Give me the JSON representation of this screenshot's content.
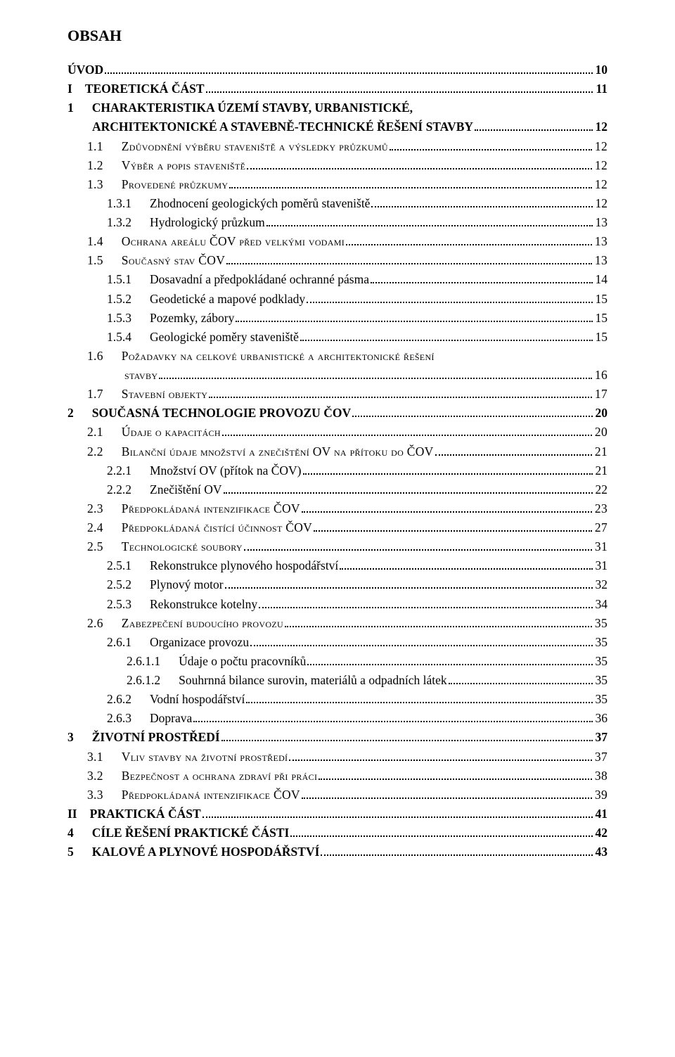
{
  "title": "OBSAH",
  "entries": [
    {
      "num": "",
      "text": "ÚVOD",
      "page": "10",
      "bold": true,
      "smallcaps": false,
      "indent": 0,
      "numGap": ""
    },
    {
      "num": "I",
      "text": "TEORETICKÁ ČÁST",
      "page": "11",
      "bold": true,
      "smallcaps": false,
      "indent": 0,
      "numGap": "narrow"
    },
    {
      "num": "1",
      "text": "CHARAKTERISTIKA ÚZEMÍ STAVBY, URBANISTICKÉ, ARCHITEKTONICKÉ A STAVEBNĚ-TECHNICKÉ ŘEŠENÍ STAVBY",
      "page": "12",
      "bold": true,
      "smallcaps": false,
      "indent": 0,
      "wrap": true,
      "numGap": "normal"
    },
    {
      "num": "1.1",
      "text": "Zdůvodnění výběru staveniště a výsledky průzkumů",
      "page": "12",
      "bold": false,
      "smallcaps": true,
      "indent": 1,
      "numGap": "normal"
    },
    {
      "num": "1.2",
      "text": "Výběr a popis staveniště",
      "page": "12",
      "bold": false,
      "smallcaps": true,
      "indent": 1,
      "numGap": "normal"
    },
    {
      "num": "1.3",
      "text": "Provedené průzkumy",
      "page": "12",
      "bold": false,
      "smallcaps": true,
      "indent": 1,
      "numGap": "normal"
    },
    {
      "num": "1.3.1",
      "text": "Zhodnocení geologických poměrů staveniště",
      "page": "12",
      "bold": false,
      "smallcaps": false,
      "indent": 2,
      "numGap": "normal"
    },
    {
      "num": "1.3.2",
      "text": "Hydrologický průzkum",
      "page": "13",
      "bold": false,
      "smallcaps": false,
      "indent": 2,
      "numGap": "normal"
    },
    {
      "num": "1.4",
      "text": "Ochrana areálu ČOV před velkými vodami",
      "page": "13",
      "bold": false,
      "smallcaps": true,
      "indent": 1,
      "numGap": "normal"
    },
    {
      "num": "1.5",
      "text": "Současný stav ČOV",
      "page": "13",
      "bold": false,
      "smallcaps": true,
      "indent": 1,
      "numGap": "normal"
    },
    {
      "num": "1.5.1",
      "text": "Dosavadní a předpokládané ochranné pásma",
      "page": "14",
      "bold": false,
      "smallcaps": false,
      "indent": 2,
      "numGap": "normal"
    },
    {
      "num": "1.5.2",
      "text": "Geodetické a mapové podklady",
      "page": "15",
      "bold": false,
      "smallcaps": false,
      "indent": 2,
      "numGap": "normal"
    },
    {
      "num": "1.5.3",
      "text": "Pozemky, zábory",
      "page": "15",
      "bold": false,
      "smallcaps": false,
      "indent": 2,
      "numGap": "normal"
    },
    {
      "num": "1.5.4",
      "text": "Geologické poměry staveniště",
      "page": "15",
      "bold": false,
      "smallcaps": false,
      "indent": 2,
      "numGap": "normal"
    },
    {
      "num": "1.6",
      "text": "Požadavky na celkové urbanistické a architektonické řešení stavby",
      "page": "16",
      "bold": false,
      "smallcaps": true,
      "indent": 1,
      "wrap": true,
      "numGap": "normal"
    },
    {
      "num": "1.7",
      "text": "Stavební objekty",
      "page": "17",
      "bold": false,
      "smallcaps": true,
      "indent": 1,
      "numGap": "normal"
    },
    {
      "num": "2",
      "text": "SOUČASNÁ TECHNOLOGIE PROVOZU ČOV",
      "page": "20",
      "bold": true,
      "smallcaps": false,
      "indent": 0,
      "numGap": "normal"
    },
    {
      "num": "2.1",
      "text": "Údaje o kapacitách",
      "page": "20",
      "bold": false,
      "smallcaps": true,
      "indent": 1,
      "numGap": "normal"
    },
    {
      "num": "2.2",
      "text": "Bilanční údaje množství a znečištění OV na přítoku do ČOV",
      "page": "21",
      "bold": false,
      "smallcaps": true,
      "indent": 1,
      "numGap": "normal"
    },
    {
      "num": "2.2.1",
      "text": "Množství OV (přítok na ČOV)",
      "page": "21",
      "bold": false,
      "smallcaps": false,
      "indent": 2,
      "numGap": "normal"
    },
    {
      "num": "2.2.2",
      "text": "Znečištění OV",
      "page": "22",
      "bold": false,
      "smallcaps": false,
      "indent": 2,
      "numGap": "normal"
    },
    {
      "num": "2.3",
      "text": "Předpokládaná intenzifikace ČOV",
      "page": "23",
      "bold": false,
      "smallcaps": true,
      "indent": 1,
      "numGap": "normal"
    },
    {
      "num": "2.4",
      "text": "Předpokládaná čistící účinnost ČOV",
      "page": "27",
      "bold": false,
      "smallcaps": true,
      "indent": 1,
      "numGap": "normal"
    },
    {
      "num": "2.5",
      "text": "Technologické soubory",
      "page": "31",
      "bold": false,
      "smallcaps": true,
      "indent": 1,
      "numGap": "normal"
    },
    {
      "num": "2.5.1",
      "text": "Rekonstrukce plynového hospodářství",
      "page": "31",
      "bold": false,
      "smallcaps": false,
      "indent": 2,
      "numGap": "normal"
    },
    {
      "num": "2.5.2",
      "text": "Plynový motor",
      "page": "32",
      "bold": false,
      "smallcaps": false,
      "indent": 2,
      "numGap": "normal"
    },
    {
      "num": "2.5.3",
      "text": "Rekonstrukce kotelny",
      "page": "34",
      "bold": false,
      "smallcaps": false,
      "indent": 2,
      "numGap": "normal"
    },
    {
      "num": "2.6",
      "text": "Zabezpečení budoucího provozu",
      "page": "35",
      "bold": false,
      "smallcaps": true,
      "indent": 1,
      "numGap": "normal"
    },
    {
      "num": "2.6.1",
      "text": "Organizace provozu",
      "page": "35",
      "bold": false,
      "smallcaps": false,
      "indent": 2,
      "numGap": "normal"
    },
    {
      "num": "2.6.1.1",
      "text": "Údaje o počtu pracovníků",
      "page": "35",
      "bold": false,
      "smallcaps": false,
      "indent": 3,
      "numGap": "normal"
    },
    {
      "num": "2.6.1.2",
      "text": "Souhrnná bilance surovin, materiálů a odpadních látek",
      "page": "35",
      "bold": false,
      "smallcaps": false,
      "indent": 3,
      "numGap": "normal"
    },
    {
      "num": "2.6.2",
      "text": "Vodní hospodářství",
      "page": "35",
      "bold": false,
      "smallcaps": false,
      "indent": 2,
      "numGap": "normal"
    },
    {
      "num": "2.6.3",
      "text": "Doprava",
      "page": "36",
      "bold": false,
      "smallcaps": false,
      "indent": 2,
      "numGap": "normal"
    },
    {
      "num": "3",
      "text": "ŽIVOTNÍ PROSTŘEDÍ",
      "page": "37",
      "bold": true,
      "smallcaps": false,
      "indent": 0,
      "numGap": "normal"
    },
    {
      "num": "3.1",
      "text": "Vliv stavby na životní prostředí",
      "page": "37",
      "bold": false,
      "smallcaps": true,
      "indent": 1,
      "numGap": "normal"
    },
    {
      "num": "3.2",
      "text": "Bezpečnost a ochrana zdraví při práci",
      "page": "38",
      "bold": false,
      "smallcaps": true,
      "indent": 1,
      "numGap": "normal"
    },
    {
      "num": "3.3",
      "text": "Předpokládaná intenzifikace ČOV",
      "page": "39",
      "bold": false,
      "smallcaps": true,
      "indent": 1,
      "numGap": "normal"
    },
    {
      "num": "II",
      "text": "PRAKTICKÁ ČÁST",
      "page": "41",
      "bold": true,
      "smallcaps": false,
      "indent": 0,
      "numGap": "narrow"
    },
    {
      "num": "4",
      "text": "CÍLE ŘEŠENÍ PRAKTICKÉ ČÁSTI",
      "page": "42",
      "bold": true,
      "smallcaps": false,
      "indent": 0,
      "numGap": "normal"
    },
    {
      "num": "5",
      "text": "KALOVÉ A PLYNOVÉ HOSPODÁŘSTVÍ",
      "page": "43",
      "bold": true,
      "smallcaps": false,
      "indent": 0,
      "numGap": "normal"
    }
  ]
}
